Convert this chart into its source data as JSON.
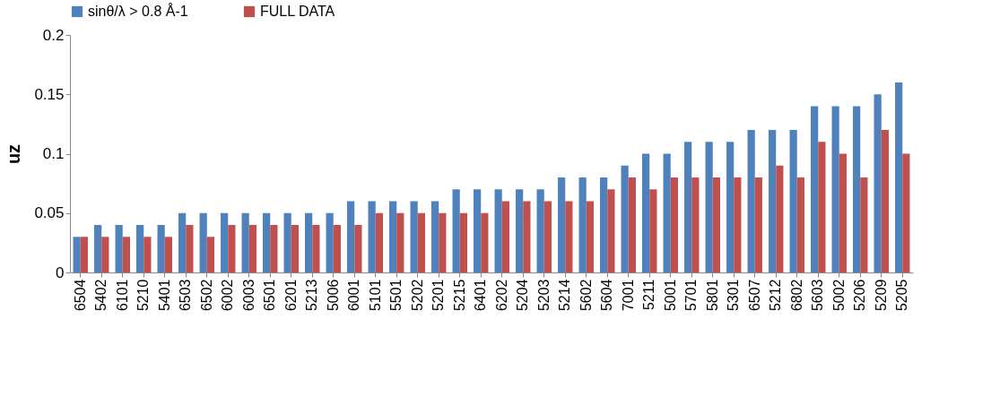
{
  "chart_data": {
    "type": "bar",
    "ylabel": "uz",
    "categories": [
      "6504",
      "5402",
      "6101",
      "5210",
      "5401",
      "6503",
      "6502",
      "6002",
      "6003",
      "6501",
      "6201",
      "5213",
      "5006",
      "6001",
      "5101",
      "5501",
      "5202",
      "5201",
      "5215",
      "6401",
      "6202",
      "5204",
      "5203",
      "5214",
      "5602",
      "5604",
      "7001",
      "5211",
      "5001",
      "5701",
      "5801",
      "5301",
      "6507",
      "5212",
      "6802",
      "5603",
      "5002",
      "5206",
      "5209",
      "5205"
    ],
    "series": [
      {
        "name": "sinθ/λ > 0.8 Å-1",
        "color": "#4f81bd",
        "values": [
          0.03,
          0.04,
          0.04,
          0.04,
          0.04,
          0.05,
          0.05,
          0.05,
          0.05,
          0.05,
          0.05,
          0.05,
          0.05,
          0.06,
          0.06,
          0.06,
          0.06,
          0.06,
          0.07,
          0.07,
          0.07,
          0.07,
          0.07,
          0.08,
          0.08,
          0.08,
          0.09,
          0.1,
          0.1,
          0.11,
          0.11,
          0.11,
          0.12,
          0.12,
          0.12,
          0.14,
          0.14,
          0.14,
          0.15,
          0.16
        ]
      },
      {
        "name": "FULL DATA",
        "color": "#c0504d",
        "values": [
          0.03,
          0.03,
          0.03,
          0.03,
          0.03,
          0.04,
          0.03,
          0.04,
          0.04,
          0.04,
          0.04,
          0.04,
          0.04,
          0.04,
          0.05,
          0.05,
          0.05,
          0.05,
          0.05,
          0.05,
          0.06,
          0.06,
          0.06,
          0.06,
          0.06,
          0.07,
          0.08,
          0.07,
          0.08,
          0.08,
          0.08,
          0.08,
          0.08,
          0.09,
          0.08,
          0.11,
          0.1,
          0.08,
          0.12,
          0.1
        ]
      }
    ],
    "ylim": [
      0,
      0.2
    ],
    "yticks": [
      0,
      0.05,
      0.1,
      0.15,
      0.2
    ],
    "grid": false,
    "legend": "top"
  }
}
